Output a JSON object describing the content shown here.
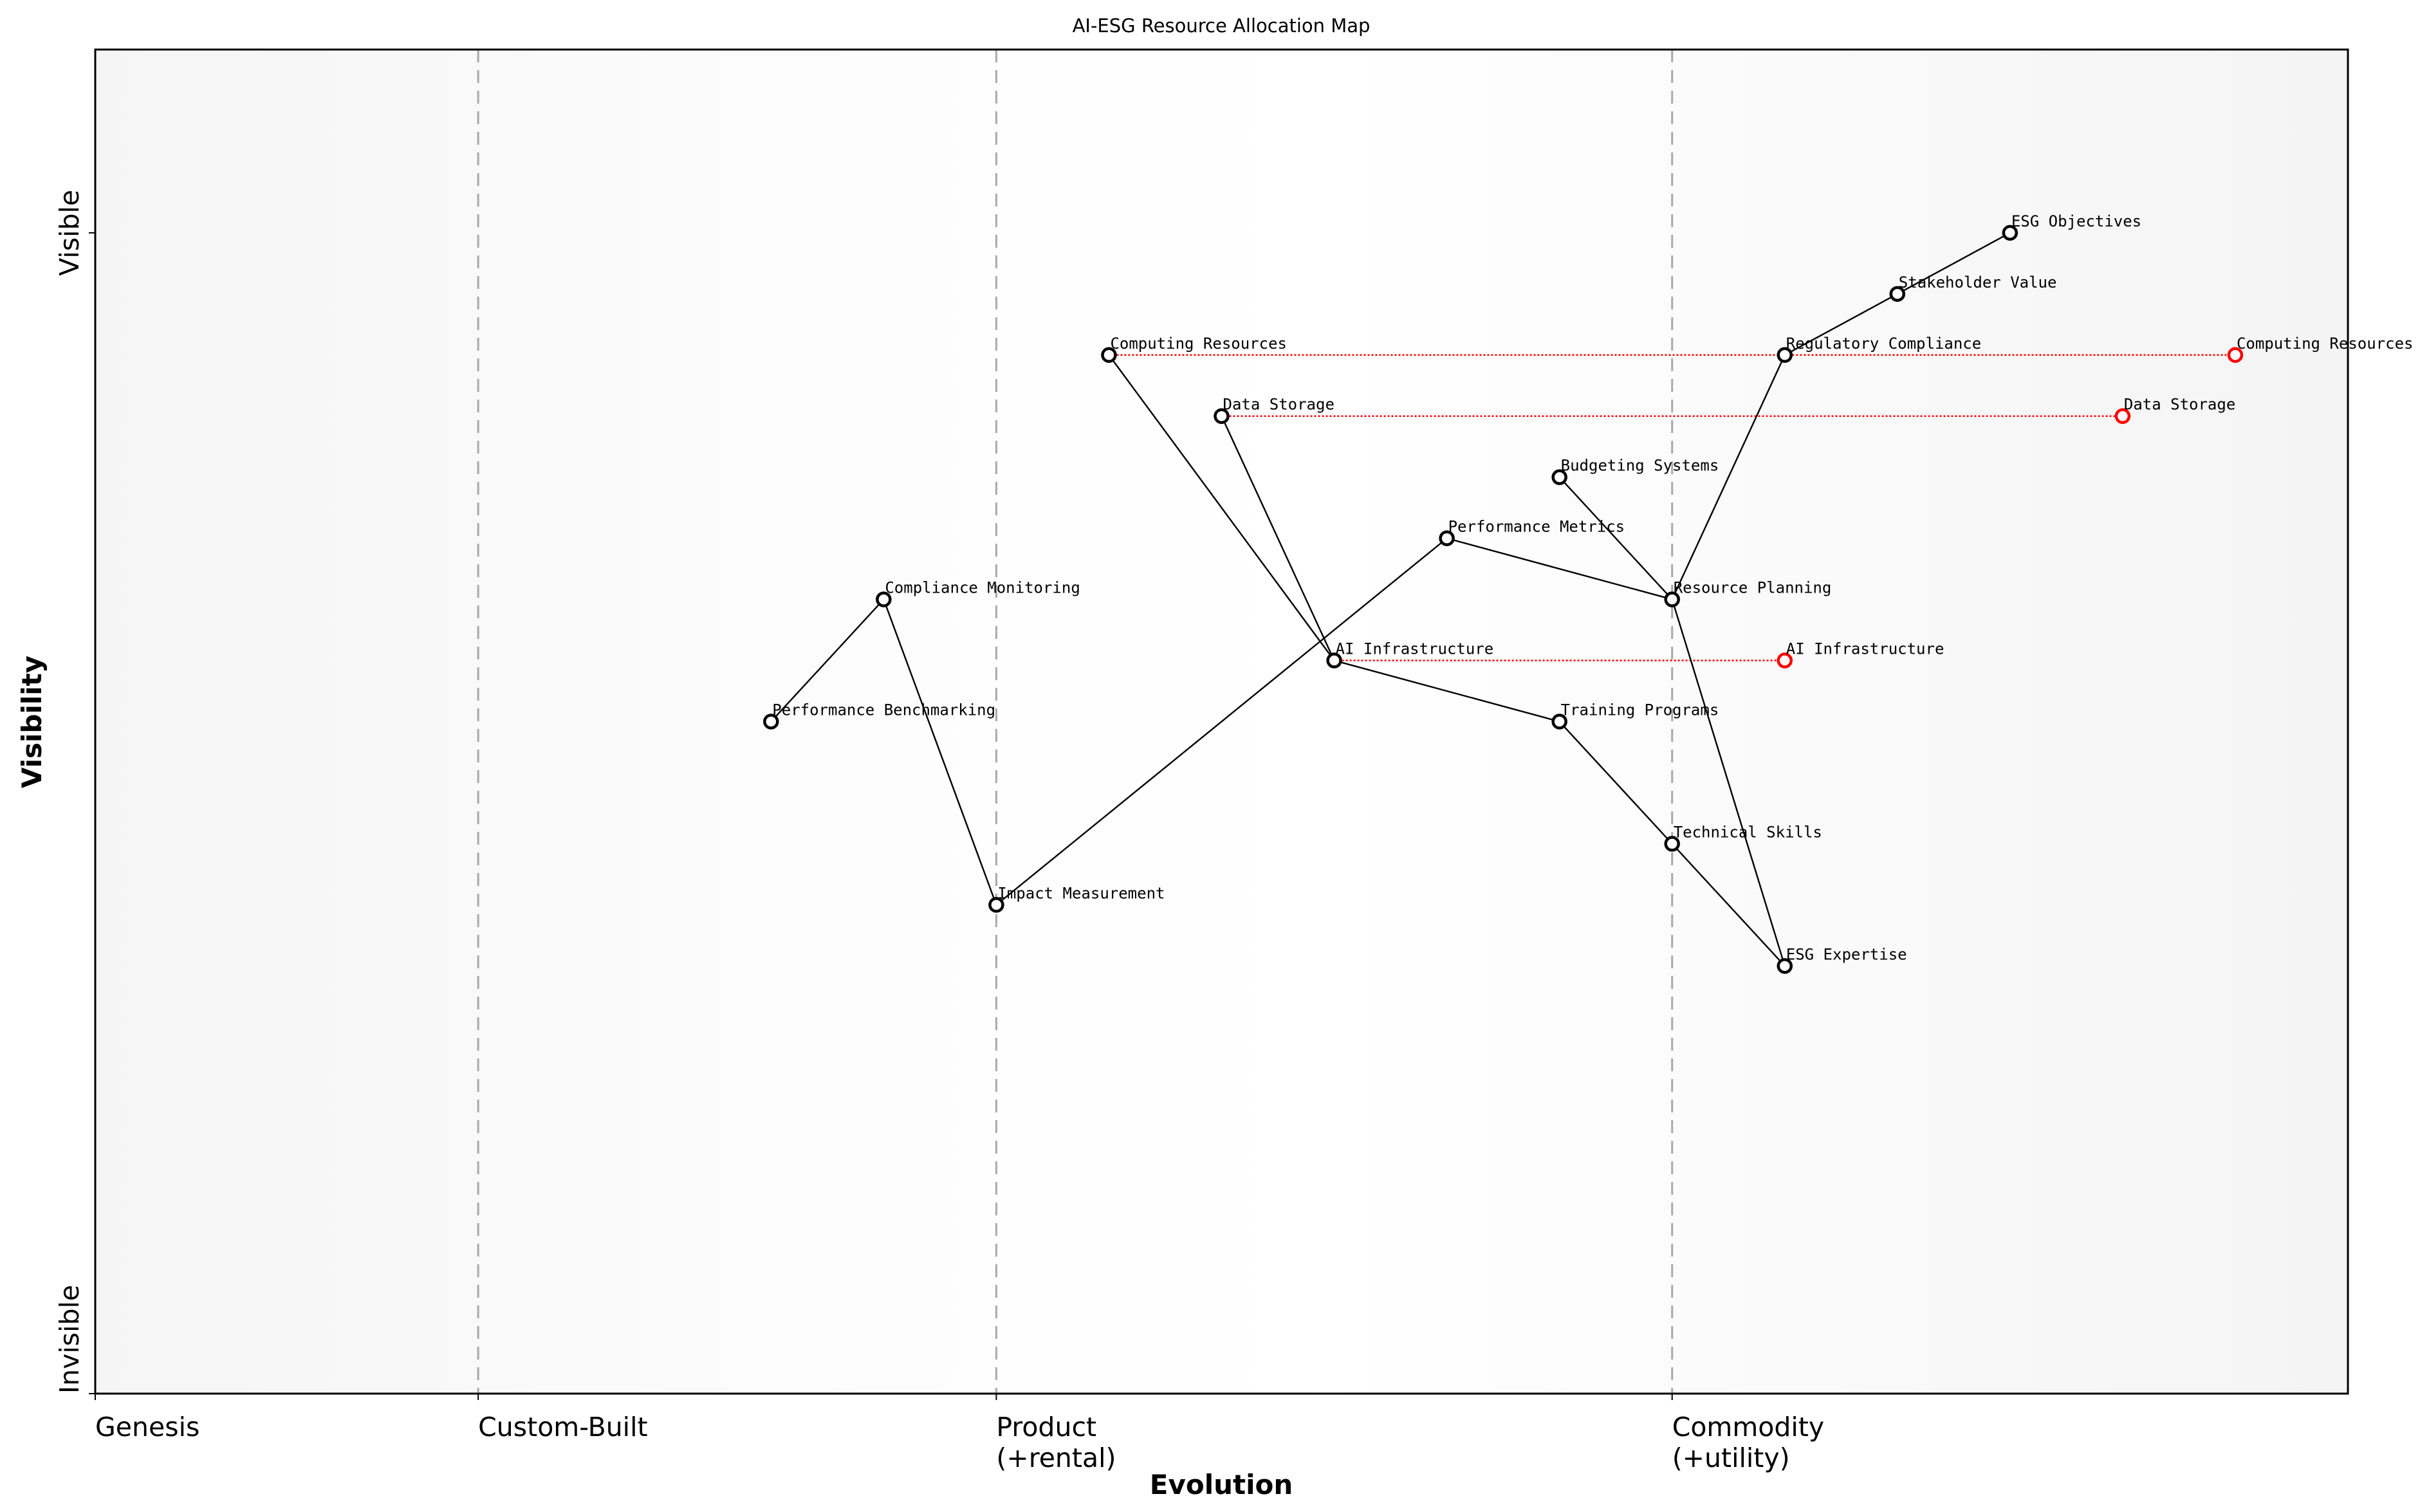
{
  "chart_data": {
    "type": "scatter",
    "title": "AI-ESG Resource Allocation Map",
    "xlabel": "Evolution",
    "ylabel": "Visibility",
    "xlim": [
      0,
      1
    ],
    "ylim": [
      0,
      1.1
    ],
    "x_ticks": [
      {
        "value": 0,
        "label": "Genesis"
      },
      {
        "value": 0.17,
        "label": "Custom-Built"
      },
      {
        "value": 0.4,
        "label": "Product\n(+rental)"
      },
      {
        "value": 0.7,
        "label": "Commodity\n(+utility)"
      }
    ],
    "y_ticks": [
      {
        "value": 0,
        "label": "Invisible"
      },
      {
        "value": 0.95,
        "label": "Visible"
      }
    ],
    "stage_dividers": [
      0.17,
      0.4,
      0.7
    ],
    "grid": false,
    "colors": {
      "component": "#000000",
      "evolved": "#ff0000",
      "link": "#000000",
      "divider": "#a9a9a9",
      "background_edge": "#f5f5f5"
    },
    "components": [
      {
        "name": "ESG Objectives",
        "x": 0.85,
        "y": 0.95
      },
      {
        "name": "Stakeholder Value",
        "x": 0.8,
        "y": 0.9
      },
      {
        "name": "Regulatory Compliance",
        "x": 0.75,
        "y": 0.85
      },
      {
        "name": "Computing Resources",
        "x": 0.45,
        "y": 0.85
      },
      {
        "name": "Data Storage",
        "x": 0.5,
        "y": 0.8
      },
      {
        "name": "Budgeting Systems",
        "x": 0.65,
        "y": 0.75
      },
      {
        "name": "Performance Metrics",
        "x": 0.6,
        "y": 0.7
      },
      {
        "name": "Resource Planning",
        "x": 0.7,
        "y": 0.65
      },
      {
        "name": "Compliance Monitoring",
        "x": 0.35,
        "y": 0.65
      },
      {
        "name": "AI Infrastructure",
        "x": 0.55,
        "y": 0.6
      },
      {
        "name": "Training Programs",
        "x": 0.65,
        "y": 0.55
      },
      {
        "name": "Performance Benchmarking",
        "x": 0.3,
        "y": 0.55
      },
      {
        "name": "Technical Skills",
        "x": 0.7,
        "y": 0.45
      },
      {
        "name": "Impact Measurement",
        "x": 0.4,
        "y": 0.4
      },
      {
        "name": "ESG Expertise",
        "x": 0.75,
        "y": 0.35
      }
    ],
    "links": [
      [
        "ESG Objectives",
        "Stakeholder Value"
      ],
      [
        "Stakeholder Value",
        "Regulatory Compliance"
      ],
      [
        "Regulatory Compliance",
        "Resource Planning"
      ],
      [
        "Budgeting Systems",
        "Resource Planning"
      ],
      [
        "Resource Planning",
        "Performance Metrics"
      ],
      [
        "Resource Planning",
        "ESG Expertise"
      ],
      [
        "Performance Metrics",
        "Impact Measurement"
      ],
      [
        "Impact Measurement",
        "Compliance Monitoring"
      ],
      [
        "Compliance Monitoring",
        "Performance Benchmarking"
      ],
      [
        "Computing Resources",
        "AI Infrastructure"
      ],
      [
        "Data Storage",
        "AI Infrastructure"
      ],
      [
        "AI Infrastructure",
        "Training Programs"
      ],
      [
        "Training Programs",
        "Technical Skills"
      ],
      [
        "Technical Skills",
        "ESG Expertise"
      ]
    ],
    "evolutions": [
      {
        "name": "Computing Resources",
        "from_x": 0.45,
        "to_x": 0.95,
        "y": 0.85
      },
      {
        "name": "Data Storage",
        "from_x": 0.5,
        "to_x": 0.9,
        "y": 0.8
      },
      {
        "name": "AI Infrastructure",
        "from_x": 0.55,
        "to_x": 0.75,
        "y": 0.6
      }
    ]
  }
}
